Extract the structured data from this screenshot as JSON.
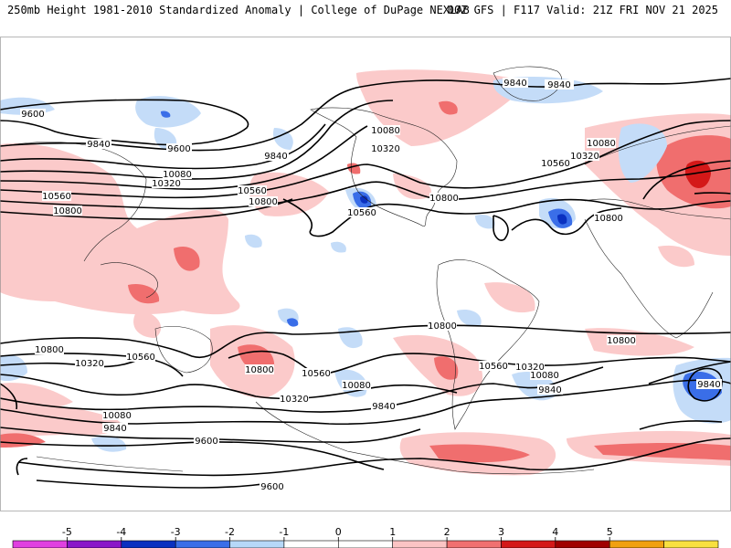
{
  "header": {
    "title_left": "250mb Height 1981-2010 Standardized Anomaly | College of DuPage NEXLAB",
    "title_right": "00Z GFS | F117 Valid: 21Z FRI NOV 21 2025"
  },
  "contour_labels": {
    "n_9840_a": "9840",
    "n_9600_a": "9600",
    "n_9840_b": "9840",
    "n_9600_b": "9600",
    "n_9840_c": "9840",
    "n_10080_a": "10080",
    "n_10320_a": "10320",
    "n_10560_a": "10560",
    "n_10800_a": "10800",
    "n_10560_b": "10560",
    "n_10800_b": "10800",
    "n_10080_b": "10080",
    "n_10320_b": "10320",
    "n_10560_c": "10560",
    "n_10800_c": "10800",
    "n_9840_d": "9840",
    "n_10080_c": "10080",
    "n_10320_c": "10320",
    "n_10560_d": "10560",
    "n_10800_d": "10800",
    "s_10800_a": "10800",
    "s_10800_b": "10800",
    "s_10800_c": "10800",
    "s_10800_d": "10800",
    "s_10560_a": "10560",
    "s_10560_b": "10560",
    "s_10560_c": "10560",
    "s_10320_a": "10320",
    "s_10320_b": "10320",
    "s_10320_c": "10320",
    "s_10080_a": "10080",
    "s_10080_b": "10080",
    "s_10080_c": "10080",
    "s_9840_a": "9840",
    "s_9840_b": "9840",
    "s_9840_c": "9840",
    "s_9840_d": "9840",
    "s_9600_a": "9600",
    "s_9600_b": "9600"
  },
  "legend": {
    "ticks": [
      "-5",
      "-4",
      "-3",
      "-2",
      "-1",
      "0",
      "1",
      "2",
      "3",
      "4",
      "5"
    ],
    "colors": [
      "#e040e0",
      "#8a16c8",
      "#0a30c0",
      "#3a6ee8",
      "#b6d8f8",
      "#ffffff",
      "#ffffff",
      "#fbc4c4",
      "#f07070",
      "#d41818",
      "#a00000",
      "#f0a010",
      "#f8e040"
    ]
  }
}
